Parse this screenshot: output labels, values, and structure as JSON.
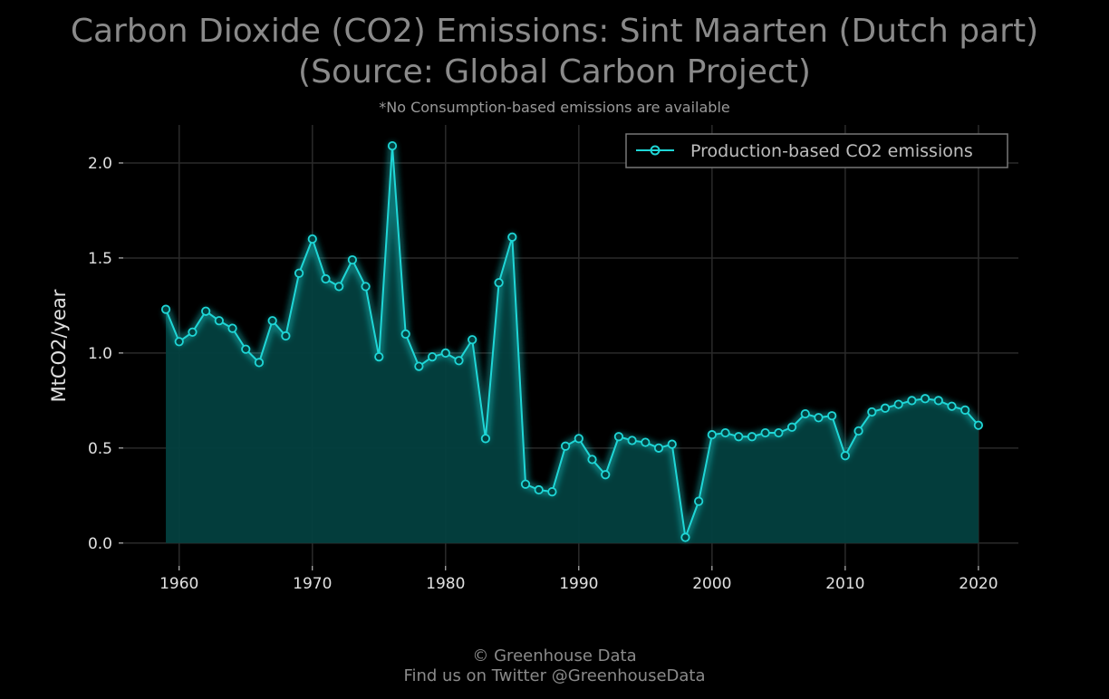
{
  "chart_data": {
    "type": "area",
    "title_line1": "Carbon Dioxide (CO2) Emissions: Sint Maarten (Dutch part)",
    "title_line2": "(Source: Global Carbon Project)",
    "subtitle": "*No Consumption-based emissions are available",
    "xlabel": "",
    "ylabel": "MtCO2/year",
    "xlim": [
      1955.8,
      2023
    ],
    "ylim": [
      -0.12,
      2.2
    ],
    "x_ticks": [
      1960,
      1970,
      1980,
      1990,
      2000,
      2010,
      2020
    ],
    "x_tick_labels": [
      "1960",
      "1970",
      "1980",
      "1990",
      "2000",
      "2010",
      "2020"
    ],
    "y_ticks": [
      0.0,
      0.5,
      1.0,
      1.5,
      2.0
    ],
    "y_tick_labels": [
      "0.0",
      "0.5",
      "1.0",
      "1.5",
      "2.0"
    ],
    "grid": true,
    "legend_position": "top-right",
    "series": [
      {
        "name": "Production-based CO2 emissions",
        "color": "#1fd6d6",
        "fill_color": "#03403f",
        "x": [
          1959,
          1960,
          1961,
          1962,
          1963,
          1964,
          1965,
          1966,
          1967,
          1968,
          1969,
          1970,
          1971,
          1972,
          1973,
          1974,
          1975,
          1976,
          1977,
          1978,
          1979,
          1980,
          1981,
          1982,
          1983,
          1984,
          1985,
          1986,
          1987,
          1988,
          1989,
          1990,
          1991,
          1992,
          1993,
          1994,
          1995,
          1996,
          1997,
          1998,
          1999,
          2000,
          2001,
          2002,
          2003,
          2004,
          2005,
          2006,
          2007,
          2008,
          2009,
          2010,
          2011,
          2012,
          2013,
          2014,
          2015,
          2016,
          2017,
          2018,
          2019,
          2020
        ],
        "values": [
          1.23,
          1.06,
          1.11,
          1.22,
          1.17,
          1.13,
          1.02,
          0.95,
          1.17,
          1.09,
          1.42,
          1.6,
          1.39,
          1.35,
          1.49,
          1.35,
          0.98,
          2.09,
          1.1,
          0.93,
          0.98,
          1.0,
          0.96,
          1.07,
          0.55,
          1.37,
          1.61,
          0.31,
          0.28,
          0.27,
          0.51,
          0.55,
          0.44,
          0.36,
          0.56,
          0.54,
          0.53,
          0.5,
          0.52,
          0.03,
          0.22,
          0.57,
          0.58,
          0.56,
          0.56,
          0.58,
          0.58,
          0.61,
          0.68,
          0.66,
          0.67,
          0.46,
          0.59,
          0.69,
          0.71,
          0.73,
          0.75,
          0.76,
          0.75,
          0.72,
          0.7,
          0.62
        ]
      }
    ]
  },
  "footer": {
    "credit": "© Greenhouse Data",
    "twitter": "Find us on Twitter @GreenhouseData"
  },
  "colors": {
    "background": "#000000",
    "title": "#8a8a8a",
    "subtitle": "#9a9a9a",
    "tick_label": "#e0e0e0",
    "grid": "#2a2a2a",
    "legend_border": "#777777",
    "legend_text": "#bdbdbd",
    "footer": "#8a8a8a"
  }
}
